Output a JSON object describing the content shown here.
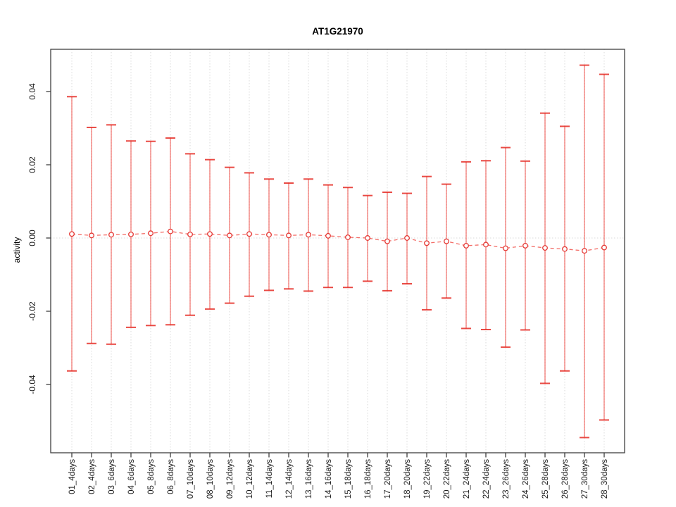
{
  "chart_data": {
    "type": "scatter",
    "title": "AT1G21970",
    "xlabel": "",
    "ylabel": "activity",
    "ylim": [
      -0.0585,
      0.0515
    ],
    "yticks": [
      0.04,
      0.02,
      0,
      -0.02,
      -0.04
    ],
    "ytick_labels": [
      "0.04",
      "0.02",
      "0.00",
      "-0.02",
      "-0.04"
    ],
    "grid": "vertical dotted gridline per category, dotted horizontal line at y=0",
    "legend_position": "none",
    "categories": [
      "01_4days",
      "02_4days",
      "03_6days",
      "04_6days",
      "05_8days",
      "06_8days",
      "07_10days",
      "08_10days",
      "09_12days",
      "10_12days",
      "11_14days",
      "12_14days",
      "13_16days",
      "14_16days",
      "15_18days",
      "16_18days",
      "17_20days",
      "18_20days",
      "19_22days",
      "20_22days",
      "21_24days",
      "22_24days",
      "23_26days",
      "24_26days",
      "25_28days",
      "26_28days",
      "27_30days",
      "28_30days"
    ],
    "series": [
      {
        "name": "mean",
        "style": "open-circle points joined by dashed red line",
        "values": [
          0.0011,
          0.0007,
          0.0009,
          0.001,
          0.0013,
          0.0018,
          0.001,
          0.0011,
          0.0007,
          0.0011,
          0.0009,
          0.0007,
          0.0009,
          0.0006,
          0.0002,
          0.0,
          -0.0009,
          0.0,
          -0.0014,
          -0.0009,
          -0.0021,
          -0.0018,
          -0.0028,
          -0.0021,
          -0.0027,
          -0.003,
          -0.0035,
          -0.0026
        ]
      },
      {
        "name": "upper_whisker",
        "style": "error-bar top cap",
        "values": [
          0.0386,
          0.0302,
          0.0309,
          0.0265,
          0.0264,
          0.0273,
          0.023,
          0.0214,
          0.0193,
          0.0178,
          0.0161,
          0.015,
          0.0161,
          0.0145,
          0.0138,
          0.0116,
          0.0125,
          0.0122,
          0.0168,
          0.0147,
          0.0208,
          0.0211,
          0.0247,
          0.021,
          0.0341,
          0.0305,
          0.0472,
          0.0447
        ]
      },
      {
        "name": "lower_whisker",
        "style": "error-bar bottom cap",
        "values": [
          -0.0363,
          -0.0288,
          -0.029,
          -0.0244,
          -0.0239,
          -0.0237,
          -0.0211,
          -0.0194,
          -0.0178,
          -0.0159,
          -0.0143,
          -0.0139,
          -0.0145,
          -0.0135,
          -0.0135,
          -0.0118,
          -0.0144,
          -0.0125,
          -0.0196,
          -0.0164,
          -0.0247,
          -0.025,
          -0.0298,
          -0.0251,
          -0.0397,
          -0.0363,
          -0.0545,
          -0.0497
        ]
      }
    ],
    "colors": {
      "error_red": "#ef3b33",
      "cap_red": "#e52a23",
      "point_red": "#e53935",
      "grid_gray": "#d9d9d9",
      "frame_gray": "#3f3f3f",
      "text_black": "#1a1a1a"
    }
  }
}
